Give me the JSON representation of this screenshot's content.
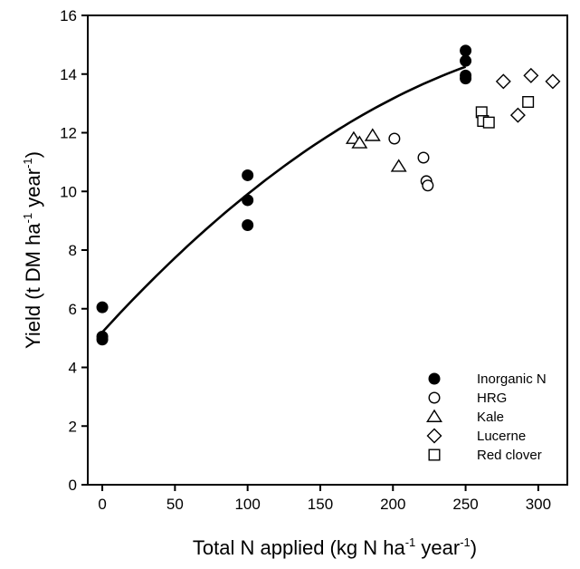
{
  "chart_data": {
    "type": "scatter",
    "xlabel": {
      "main": "Total N applied (kg N ha",
      "sup1": "-1",
      "mid": " year",
      "sup2": "-1",
      "end": ")"
    },
    "ylabel": {
      "main": "Yield (t DM ha",
      "sup1": "-1",
      "mid": " year",
      "sup2": "-1",
      "end": ")"
    },
    "xlim": [
      -10,
      320
    ],
    "ylim": [
      0,
      16
    ],
    "xticks": [
      "0",
      "50",
      "100",
      "150",
      "200",
      "250",
      "300"
    ],
    "yticks": [
      "0",
      "2",
      "4",
      "6",
      "8",
      "10",
      "12",
      "14",
      "16"
    ],
    "grid": false,
    "legend_position": "bottom-right",
    "series": [
      {
        "name": "Inorganic N",
        "marker": "filled-circle",
        "x": [
          0,
          0,
          0,
          100,
          100,
          100,
          250,
          250,
          250,
          250
        ],
        "y": [
          6.05,
          5.05,
          4.95,
          10.55,
          9.7,
          8.85,
          14.8,
          14.45,
          13.95,
          13.85
        ]
      },
      {
        "name": "HRG",
        "marker": "open-circle",
        "x": [
          201,
          221,
          223,
          224
        ],
        "y": [
          11.8,
          11.15,
          10.35,
          10.2
        ]
      },
      {
        "name": "Kale",
        "marker": "open-triangle",
        "x": [
          173,
          177,
          186,
          204
        ],
        "y": [
          11.8,
          11.65,
          11.9,
          10.85
        ]
      },
      {
        "name": "Lucerne",
        "marker": "open-diamond",
        "x": [
          276,
          286,
          295,
          310
        ],
        "y": [
          13.75,
          12.6,
          13.95,
          13.75
        ]
      },
      {
        "name": "Red clover",
        "marker": "open-square",
        "x": [
          261,
          262,
          266,
          293
        ],
        "y": [
          12.7,
          12.4,
          12.35,
          13.05
        ]
      }
    ],
    "fit_curve": {
      "x_range": [
        0,
        250
      ],
      "coefficients": [
        5.2,
        0.0543,
        -7.24e-05
      ]
    }
  }
}
